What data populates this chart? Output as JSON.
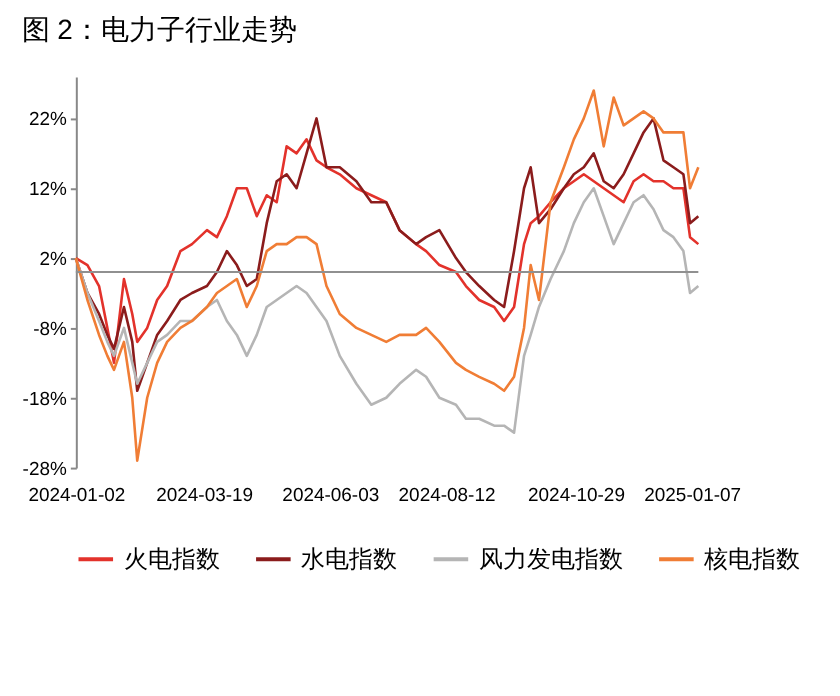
{
  "chart_data": {
    "type": "line",
    "title": "图 2：电力子行业走势",
    "x": [
      "2024-01-02",
      "2024-01-09",
      "2024-01-16",
      "2024-01-21",
      "2024-01-25",
      "2024-01-31",
      "2024-02-05",
      "2024-02-08",
      "2024-02-14",
      "2024-02-20",
      "2024-02-26",
      "2024-03-05",
      "2024-03-12",
      "2024-03-21",
      "2024-03-27",
      "2024-04-02",
      "2024-04-08",
      "2024-04-14",
      "2024-04-20",
      "2024-04-26",
      "2024-05-02",
      "2024-05-08",
      "2024-05-14",
      "2024-05-20",
      "2024-05-26",
      "2024-06-01",
      "2024-06-09",
      "2024-06-19",
      "2024-06-28",
      "2024-07-07",
      "2024-07-15",
      "2024-07-25",
      "2024-07-31",
      "2024-08-08",
      "2024-08-18",
      "2024-08-24",
      "2024-09-01",
      "2024-09-10",
      "2024-09-16",
      "2024-09-22",
      "2024-09-28",
      "2024-10-02",
      "2024-10-07",
      "2024-10-14",
      "2024-10-22",
      "2024-10-28",
      "2024-11-03",
      "2024-11-09",
      "2024-11-15",
      "2024-11-21",
      "2024-11-27",
      "2024-12-03",
      "2024-12-09",
      "2024-12-15",
      "2024-12-21",
      "2024-12-27",
      "2025-01-02",
      "2025-01-06",
      "2025-01-11"
    ],
    "series": [
      {
        "name": "火电指数",
        "color": "#e3322b",
        "values": [
          2,
          1,
          -2,
          -8,
          -13,
          -1,
          -6,
          -10,
          -8,
          -4,
          -2,
          3,
          4,
          6,
          5,
          8,
          12,
          12,
          8,
          11,
          10,
          18,
          17,
          19,
          16,
          15,
          14,
          12,
          11,
          10,
          6,
          4,
          3,
          1,
          0,
          -2,
          -4,
          -5,
          -7,
          -5,
          4,
          7,
          8,
          10,
          12,
          13,
          14,
          13,
          12,
          11,
          10,
          13,
          14,
          13,
          13,
          12,
          12,
          5,
          4
        ]
      },
      {
        "name": "水电指数",
        "color": "#8b1c1c",
        "values": [
          2,
          -3,
          -6,
          -9,
          -11,
          -5,
          -10,
          -17,
          -13,
          -9,
          -7,
          -4,
          -3,
          -2,
          0,
          3,
          1,
          -2,
          -1,
          7,
          13,
          14,
          12,
          17,
          22,
          15,
          15,
          13,
          10,
          10,
          6,
          4,
          5,
          6,
          2,
          0,
          -2,
          -4,
          -5,
          3,
          12,
          15,
          7,
          9,
          12,
          14,
          15,
          17,
          13,
          12,
          14,
          17,
          20,
          22,
          16,
          15,
          14,
          7,
          8
        ]
      },
      {
        "name": "风力发电指数",
        "color": "#b5b5b5",
        "values": [
          2,
          -3,
          -7,
          -10,
          -12,
          -8,
          -13,
          -16,
          -13,
          -10,
          -9,
          -7,
          -7,
          -5,
          -4,
          -7,
          -9,
          -12,
          -9,
          -5,
          -4,
          -3,
          -2,
          -3,
          -5,
          -7,
          -12,
          -16,
          -19,
          -18,
          -16,
          -14,
          -15,
          -18,
          -19,
          -21,
          -21,
          -22,
          -22,
          -23,
          -12,
          -9,
          -5,
          -1,
          3,
          7,
          10,
          12,
          8,
          4,
          7,
          10,
          11,
          9,
          6,
          5,
          3,
          -3,
          -2
        ]
      },
      {
        "name": "核电指数",
        "color": "#f07d35",
        "values": [
          2,
          -4,
          -9,
          -12,
          -14,
          -10,
          -18,
          -27,
          -18,
          -13,
          -10,
          -8,
          -7,
          -5,
          -3,
          -2,
          -1,
          -5,
          -2,
          3,
          4,
          4,
          5,
          5,
          4,
          -2,
          -6,
          -8,
          -9,
          -10,
          -9,
          -9,
          -8,
          -10,
          -13,
          -14,
          -15,
          -16,
          -17,
          -15,
          -8,
          1,
          -4,
          10,
          15,
          19,
          22,
          26,
          18,
          25,
          21,
          22,
          23,
          22,
          20,
          20,
          20,
          12,
          15
        ]
      }
    ],
    "xlim": [
      "2024-01-02",
      "2025-01-11"
    ],
    "xticks": [
      "2024-01-02",
      "2024-03-19",
      "2024-06-03",
      "2024-08-12",
      "2024-10-29",
      "2025-01-07"
    ],
    "ylim": [
      -28,
      28
    ],
    "yticks": [
      {
        "value": -28,
        "label": "-28%"
      },
      {
        "value": -18,
        "label": "-18%"
      },
      {
        "value": -8,
        "label": "-8%"
      },
      {
        "value": 2,
        "label": "2%"
      },
      {
        "value": 12,
        "label": "12%"
      },
      {
        "value": 22,
        "label": "22%"
      }
    ],
    "ref_lines": [
      {
        "axis": "y",
        "value": 0,
        "color": "#909090"
      }
    ],
    "legend": "bottom",
    "grid": false,
    "marker": "none",
    "line_style": "solid"
  }
}
